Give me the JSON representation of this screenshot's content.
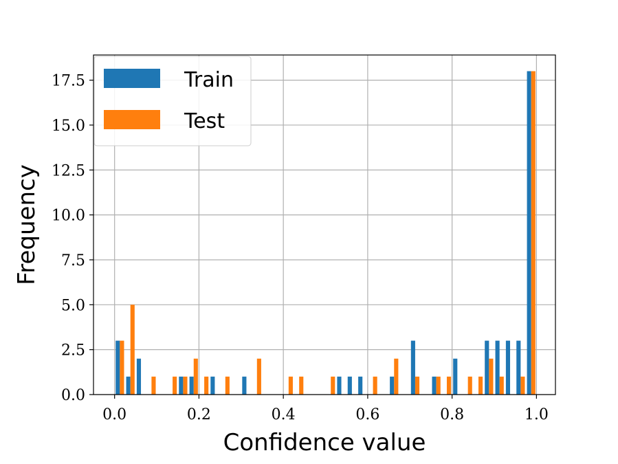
{
  "chart_data": {
    "type": "bar",
    "xlabel": "Confidence value",
    "ylabel": "Frequency",
    "xlim": [
      -0.05,
      1.045
    ],
    "ylim": [
      0,
      18.9
    ],
    "xticks": [
      0.0,
      0.2,
      0.4,
      0.6,
      0.8,
      1.0
    ],
    "xtick_labels": [
      "0.0",
      "0.2",
      "0.4",
      "0.6",
      "0.8",
      "1.0"
    ],
    "yticks": [
      0,
      2.5,
      5,
      7.5,
      10,
      12.5,
      15,
      17.5
    ],
    "ytick_labels": [
      "0.0",
      "2.5",
      "5.0",
      "7.5",
      "10.0",
      "12.5",
      "15.0",
      "17.5"
    ],
    "grid": true,
    "legend_position": "top-left",
    "bins": [
      0.0,
      0.025,
      0.05,
      0.075,
      0.1,
      0.125,
      0.15,
      0.175,
      0.2,
      0.225,
      0.25,
      0.275,
      0.3,
      0.325,
      0.35,
      0.375,
      0.4,
      0.425,
      0.45,
      0.475,
      0.5,
      0.525,
      0.55,
      0.575,
      0.6,
      0.625,
      0.65,
      0.675,
      0.7,
      0.725,
      0.75,
      0.775,
      0.8,
      0.825,
      0.85,
      0.875,
      0.9,
      0.925,
      0.95,
      0.975
    ],
    "bin_width": 0.025,
    "series": [
      {
        "name": "Train",
        "color": "#1f77b4",
        "values": [
          3,
          1,
          2,
          0,
          0,
          0,
          1,
          1,
          0,
          1,
          0,
          0,
          1,
          0,
          0,
          0,
          0,
          0,
          0,
          0,
          0,
          1,
          1,
          1,
          0,
          0,
          1,
          0,
          3,
          0,
          1,
          0,
          2,
          0,
          0,
          3,
          3,
          3,
          3,
          18
        ]
      },
      {
        "name": "Test",
        "color": "#ff7f0e",
        "values": [
          3,
          5,
          0,
          1,
          0,
          1,
          1,
          2,
          1,
          0,
          1,
          0,
          0,
          2,
          0,
          0,
          1,
          1,
          0,
          0,
          1,
          0,
          0,
          0,
          1,
          0,
          2,
          0,
          1,
          0,
          1,
          1,
          0,
          1,
          1,
          2,
          1,
          0,
          1,
          18
        ]
      }
    ]
  }
}
